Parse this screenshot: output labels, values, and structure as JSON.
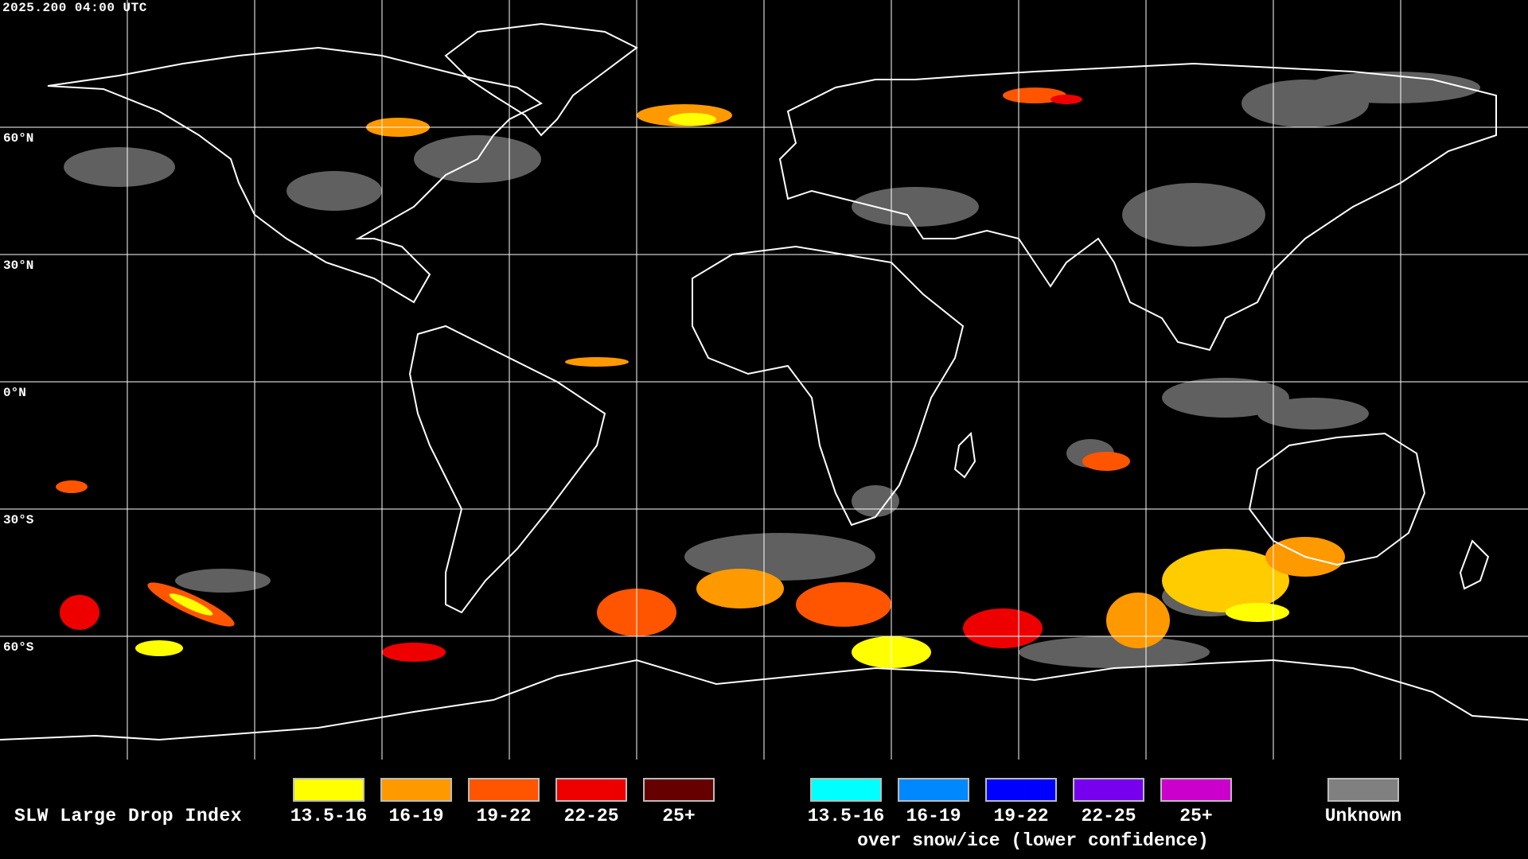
{
  "header": {
    "timestamp": "2025.200 04:00 UTC"
  },
  "map": {
    "latitude_labels": [
      "60°N",
      "30°N",
      "0°N",
      "30°S",
      "60°S"
    ],
    "grid_color": "#ffffff",
    "coastline_color": "#ffffff",
    "background_color": "#000000"
  },
  "legend": {
    "title": "SLW Large Drop Index",
    "main_scale": [
      {
        "label": "13.5-16",
        "color": "#ffff00"
      },
      {
        "label": "16-19",
        "color": "#ff9900"
      },
      {
        "label": "19-22",
        "color": "#ff5500"
      },
      {
        "label": "22-25",
        "color": "#ee0000"
      },
      {
        "label": "25+",
        "color": "#660000"
      }
    ],
    "snow_scale": [
      {
        "label": "13.5-16",
        "color": "#00ffff"
      },
      {
        "label": "16-19",
        "color": "#0088ff"
      },
      {
        "label": "19-22",
        "color": "#0000ff"
      },
      {
        "label": "22-25",
        "color": "#7700ee"
      },
      {
        "label": "25+",
        "color": "#cc00cc"
      }
    ],
    "snow_caption": "over snow/ice (lower confidence)",
    "unknown": {
      "label": "Unknown",
      "color": "#808080"
    }
  }
}
